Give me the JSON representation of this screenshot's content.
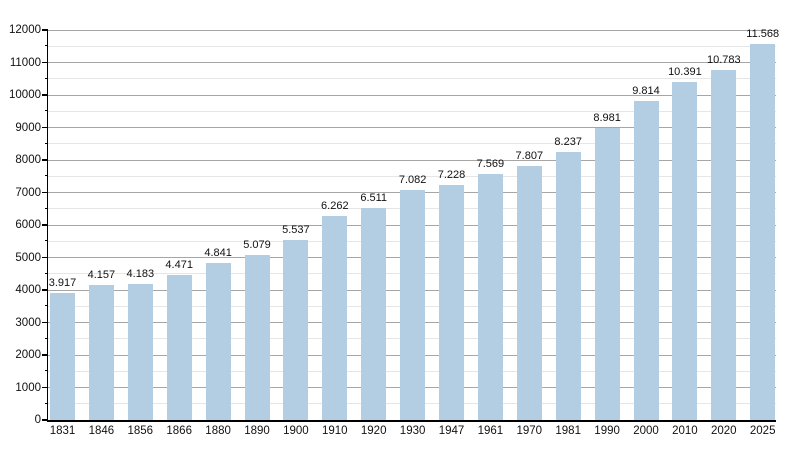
{
  "colors": {
    "background": "#ffffff",
    "bar_fill": "#b3cde3",
    "grid_major": "#a6a6a6",
    "grid_minor": "#e6e6e6",
    "axis": "#000000",
    "text": "#111111"
  },
  "chart_data": {
    "type": "bar",
    "title": "",
    "xlabel": "",
    "ylabel": "",
    "categories": [
      "1831",
      "1846",
      "1856",
      "1866",
      "1880",
      "1890",
      "1900",
      "1910",
      "1920",
      "1930",
      "1947",
      "1961",
      "1970",
      "1981",
      "1990",
      "2000",
      "2010",
      "2020",
      "2025"
    ],
    "values": [
      3917,
      4157,
      4183,
      4471,
      4841,
      5079,
      5537,
      6262,
      6511,
      7082,
      7228,
      7569,
      7807,
      8237,
      8981,
      9814,
      10391,
      10783,
      11568
    ],
    "value_labels": [
      "3.917",
      "4.157",
      "4.183",
      "4.471",
      "4.841",
      "5.079",
      "5.537",
      "6.262",
      "6.511",
      "7.082",
      "7.228",
      "7.569",
      "7.807",
      "8.237",
      "8.981",
      "9.814",
      "10.391",
      "10.783",
      "11.568"
    ],
    "ylim": [
      0,
      12000
    ],
    "ytick_step": 1000,
    "ytick_minor_step": 500,
    "ytick_labels": [
      "0",
      "1000",
      "2000",
      "3000",
      "4000",
      "5000",
      "6000",
      "7000",
      "8000",
      "9000",
      "10000",
      "11000",
      "12000"
    ],
    "grid": "on",
    "legend": "none"
  }
}
